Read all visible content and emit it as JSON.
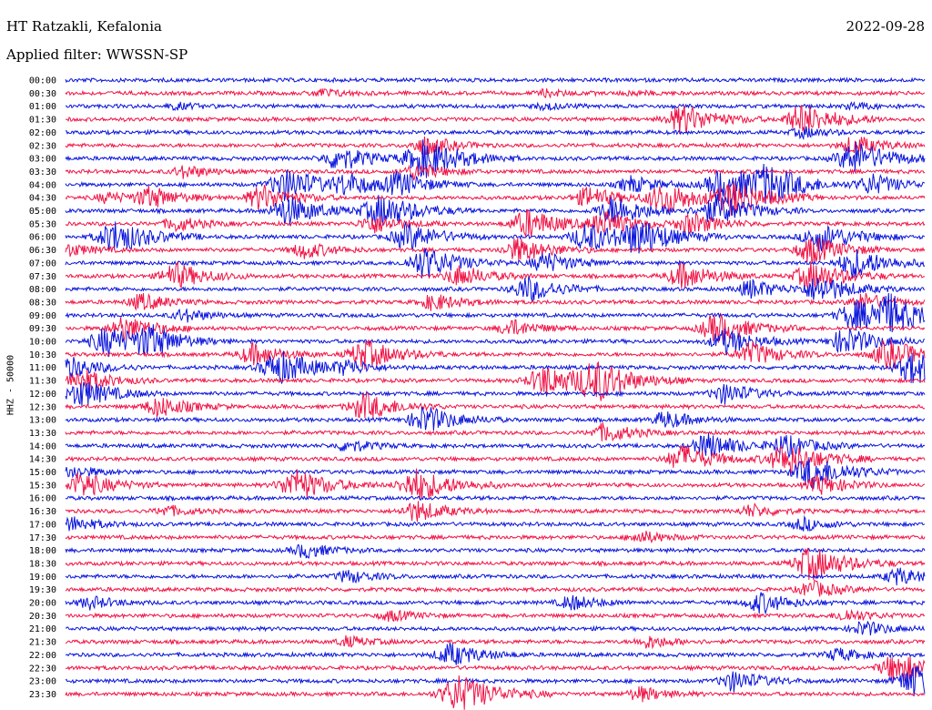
{
  "header": {
    "station": "HT Ratzakli, Kefalonia",
    "date": "2022-09-28",
    "filter_label": "Applied filter: WWSSN-SP"
  },
  "colors": {
    "blue": "#0a14dc",
    "red": "#f01446"
  },
  "chart_data": {
    "type": "line",
    "ylabel": "HHZ - 50000",
    "series_colors": [
      "blue",
      "red"
    ],
    "rows": [
      {
        "label": "00:00",
        "events": []
      },
      {
        "label": "00:30",
        "events": [
          [
            0.3,
            0.4
          ],
          [
            0.56,
            0.3
          ],
          [
            0.66,
            0.2
          ]
        ]
      },
      {
        "label": "01:00",
        "events": [
          [
            0.13,
            0.3
          ],
          [
            0.56,
            0.3
          ],
          [
            0.92,
            0.3
          ]
        ]
      },
      {
        "label": "01:30",
        "events": [
          [
            0.72,
            1.4
          ],
          [
            0.86,
            1.5
          ]
        ]
      },
      {
        "label": "02:00",
        "events": [
          [
            0.86,
            0.5
          ]
        ]
      },
      {
        "label": "02:30",
        "events": [
          [
            0.42,
            0.9
          ],
          [
            0.92,
            0.9
          ]
        ]
      },
      {
        "label": "03:00",
        "events": [
          [
            0.32,
            1.2
          ],
          [
            0.42,
            1.8
          ],
          [
            0.92,
            1.6
          ]
        ]
      },
      {
        "label": "03:30",
        "events": [
          [
            0.14,
            0.6
          ],
          [
            0.41,
            0.8
          ]
        ]
      },
      {
        "label": "04:00",
        "events": [
          [
            0.26,
            1.6
          ],
          [
            0.33,
            0.9
          ],
          [
            0.39,
            1.1
          ],
          [
            0.66,
            0.8
          ],
          [
            0.77,
            1.8
          ],
          [
            0.82,
            1.5
          ],
          [
            0.94,
            1.0
          ]
        ]
      },
      {
        "label": "04:30",
        "events": [
          [
            0.05,
            0.5
          ],
          [
            0.1,
            1.0
          ],
          [
            0.23,
            1.2
          ],
          [
            0.61,
            1.0
          ],
          [
            0.7,
            1.5
          ],
          [
            0.78,
            1.6
          ]
        ]
      },
      {
        "label": "05:00",
        "events": [
          [
            0.26,
            1.4
          ],
          [
            0.37,
            1.6
          ],
          [
            0.64,
            1.4
          ],
          [
            0.76,
            1.5
          ]
        ]
      },
      {
        "label": "05:30",
        "events": [
          [
            0.13,
            0.7
          ],
          [
            0.36,
            0.9
          ],
          [
            0.54,
            1.4
          ],
          [
            0.63,
            1.1
          ],
          [
            0.73,
            1.0
          ]
        ]
      },
      {
        "label": "06:00",
        "events": [
          [
            0.06,
            1.6
          ],
          [
            0.4,
            1.3
          ],
          [
            0.61,
            1.4
          ],
          [
            0.67,
            1.6
          ],
          [
            0.88,
            1.4
          ]
        ]
      },
      {
        "label": "06:30",
        "events": [
          [
            0.0,
            0.7
          ],
          [
            0.28,
            0.8
          ],
          [
            0.53,
            1.2
          ],
          [
            0.87,
            1.3
          ]
        ]
      },
      {
        "label": "07:00",
        "events": [
          [
            0.42,
            1.5
          ],
          [
            0.56,
            1.0
          ],
          [
            0.92,
            1.4
          ]
        ]
      },
      {
        "label": "07:30",
        "events": [
          [
            0.13,
            1.2
          ],
          [
            0.46,
            1.0
          ],
          [
            0.72,
            1.2
          ],
          [
            0.87,
            1.4
          ]
        ]
      },
      {
        "label": "08:00",
        "events": [
          [
            0.54,
            1.2
          ],
          [
            0.8,
            0.9
          ],
          [
            0.88,
            1.3
          ]
        ]
      },
      {
        "label": "08:30",
        "events": [
          [
            0.09,
            0.8
          ],
          [
            0.43,
            0.8
          ],
          [
            0.93,
            0.8
          ]
        ]
      },
      {
        "label": "09:00",
        "events": [
          [
            0.14,
            0.6
          ],
          [
            0.92,
            1.4
          ],
          [
            0.96,
            1.6
          ]
        ]
      },
      {
        "label": "09:30",
        "events": [
          [
            0.07,
            1.2
          ],
          [
            0.52,
            0.8
          ],
          [
            0.76,
            1.4
          ]
        ]
      },
      {
        "label": "10:00",
        "events": [
          [
            0.05,
            1.4
          ],
          [
            0.1,
            1.3
          ],
          [
            0.77,
            1.2
          ],
          [
            0.91,
            1.3
          ]
        ]
      },
      {
        "label": "10:30",
        "events": [
          [
            0.22,
            1.0
          ],
          [
            0.35,
            1.4
          ],
          [
            0.8,
            1.1
          ],
          [
            0.96,
            1.4
          ]
        ]
      },
      {
        "label": "11:00",
        "events": [
          [
            0.0,
            1.2
          ],
          [
            0.25,
            1.6
          ],
          [
            0.33,
            0.6
          ],
          [
            0.99,
            1.6
          ]
        ]
      },
      {
        "label": "11:30",
        "events": [
          [
            0.02,
            1.1
          ],
          [
            0.56,
            1.5
          ],
          [
            0.62,
            1.8
          ]
        ]
      },
      {
        "label": "12:00",
        "events": [
          [
            0.02,
            1.3
          ],
          [
            0.77,
            1.0
          ]
        ]
      },
      {
        "label": "12:30",
        "events": [
          [
            0.11,
            1.0
          ],
          [
            0.35,
            1.3
          ]
        ]
      },
      {
        "label": "13:00",
        "events": [
          [
            0.42,
            1.3
          ],
          [
            0.7,
            0.8
          ]
        ]
      },
      {
        "label": "13:30",
        "events": [
          [
            0.63,
            0.9
          ]
        ]
      },
      {
        "label": "14:00",
        "events": [
          [
            0.33,
            0.6
          ],
          [
            0.75,
            1.2
          ],
          [
            0.84,
            1.0
          ]
        ]
      },
      {
        "label": "14:30",
        "events": [
          [
            0.72,
            1.3
          ],
          [
            0.84,
            1.6
          ]
        ]
      },
      {
        "label": "15:00",
        "events": [
          [
            0.01,
            0.6
          ],
          [
            0.87,
            1.6
          ]
        ]
      },
      {
        "label": "15:30",
        "events": [
          [
            0.02,
            1.2
          ],
          [
            0.27,
            1.5
          ],
          [
            0.41,
            1.6
          ],
          [
            0.88,
            0.9
          ]
        ]
      },
      {
        "label": "16:00",
        "events": []
      },
      {
        "label": "16:30",
        "events": [
          [
            0.12,
            0.5
          ],
          [
            0.41,
            1.0
          ],
          [
            0.8,
            0.6
          ]
        ]
      },
      {
        "label": "17:00",
        "events": [
          [
            0.01,
            0.7
          ],
          [
            0.86,
            0.6
          ]
        ]
      },
      {
        "label": "17:30",
        "events": [
          [
            0.67,
            0.6
          ]
        ]
      },
      {
        "label": "18:00",
        "events": [
          [
            0.28,
            0.7
          ]
        ]
      },
      {
        "label": "18:30",
        "events": [
          [
            0.87,
            1.6
          ]
        ]
      },
      {
        "label": "19:00",
        "events": [
          [
            0.33,
            0.6
          ],
          [
            0.97,
            0.8
          ]
        ]
      },
      {
        "label": "19:30",
        "events": [
          [
            0.87,
            0.8
          ]
        ]
      },
      {
        "label": "20:00",
        "events": [
          [
            0.03,
            0.6
          ],
          [
            0.59,
            0.7
          ],
          [
            0.81,
            1.0
          ]
        ]
      },
      {
        "label": "20:30",
        "events": [
          [
            0.38,
            0.5
          ],
          [
            0.91,
            0.6
          ]
        ]
      },
      {
        "label": "21:00",
        "events": [
          [
            0.93,
            0.7
          ]
        ]
      },
      {
        "label": "21:30",
        "events": [
          [
            0.33,
            0.5
          ],
          [
            0.68,
            0.6
          ]
        ]
      },
      {
        "label": "22:00",
        "events": [
          [
            0.45,
            1.1
          ],
          [
            0.9,
            0.6
          ]
        ]
      },
      {
        "label": "22:30",
        "events": [
          [
            0.97,
            1.5
          ]
        ]
      },
      {
        "label": "23:00",
        "events": [
          [
            0.78,
            1.0
          ],
          [
            0.99,
            1.6
          ]
        ]
      },
      {
        "label": "23:30",
        "events": [
          [
            0.46,
            1.8
          ],
          [
            0.67,
            0.7
          ]
        ]
      }
    ]
  }
}
